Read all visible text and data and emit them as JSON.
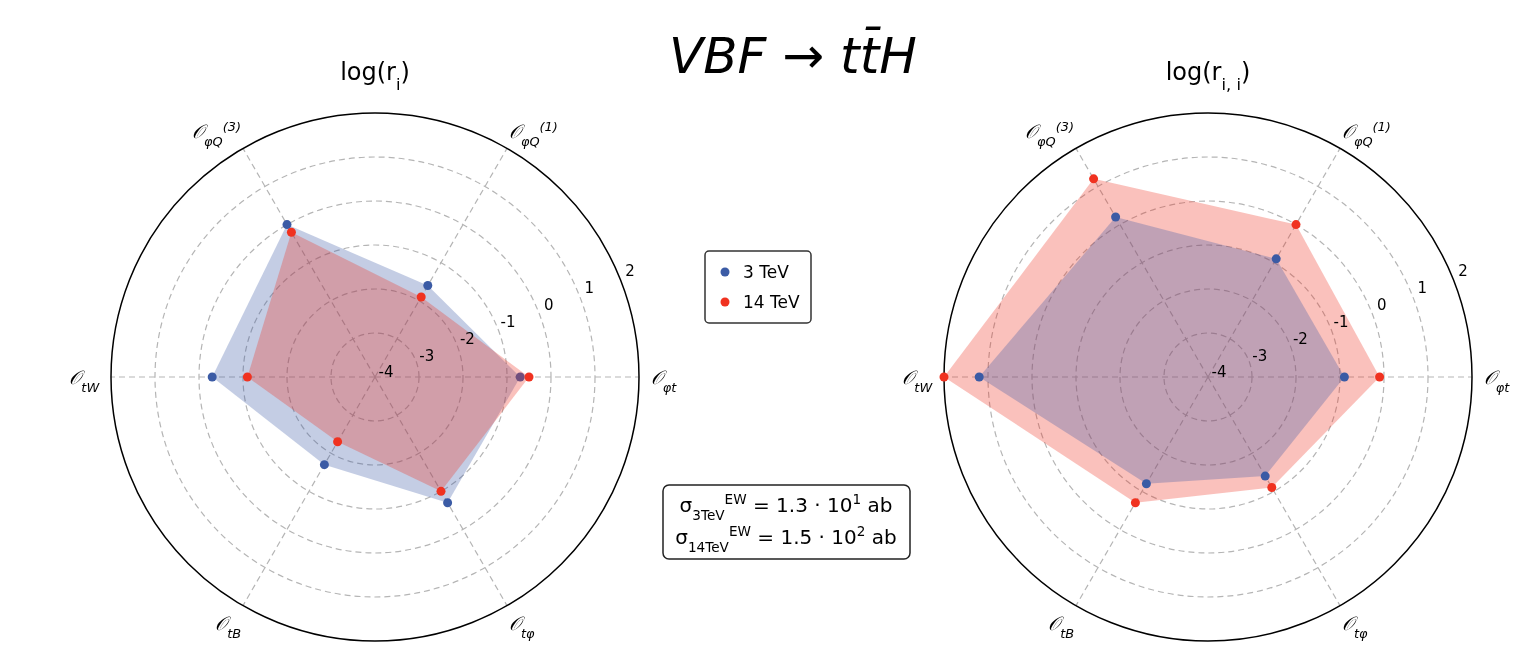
{
  "chart_data": [
    {
      "type": "radar",
      "title": "log(r$_{i}$)",
      "categories": [
        "𝒪$_{φQ}$$^{(1)}$",
        "𝒪$_{φt}$",
        "𝒪$_{tφ}$",
        "𝒪$_{tB}$",
        "𝒪$_{tW}$",
        "𝒪$_{φQ}$$^{(3)}$"
      ],
      "series": [
        {
          "name": "3 TeV",
          "color": "#3b5ba5",
          "values": [
            -1.6,
            -0.7,
            -0.7,
            -1.7,
            -0.3,
            0.0
          ]
        },
        {
          "name": "14 TeV",
          "color": "#f03220",
          "values": [
            -1.9,
            -0.5,
            -1.0,
            -2.3,
            -1.1,
            -0.2
          ]
        }
      ],
      "ylim": [
        -4,
        2
      ],
      "yticks": [
        -4,
        -3,
        -2,
        -1,
        0,
        1,
        2
      ],
      "grid": true,
      "marker": "circle",
      "legend": "right",
      "annotations": [
        "VBF → tt̄H",
        "σ$_{3TeV}$$^{EW}$ = 1.3 · 10$^{1}$ ab",
        "σ$_{14TeV}$$^{EW}$ = 1.5 · 10$^{2}$ ab"
      ]
    },
    {
      "type": "radar",
      "title": "log(r$_{i, i}$)",
      "categories": [
        "𝒪$_{φQ}$$^{(1)}$",
        "𝒪$_{φt}$",
        "𝒪$_{tφ}$",
        "𝒪$_{tB}$",
        "𝒪$_{tW}$",
        "𝒪$_{φQ}$$^{(3)}$"
      ],
      "series": [
        {
          "color": "#f03220",
          "values": [
            0.0,
            -0.1,
            -1.1,
            -0.7,
            2.0,
            1.2
          ]
        },
        {
          "color": "#3b5ba5",
          "values": [
            -0.9,
            -0.9,
            -1.4,
            -1.2,
            1.2,
            0.2
          ]
        }
      ],
      "ylim": [
        -4,
        2
      ],
      "yticks": [
        -4,
        -3,
        -2,
        -1,
        0,
        1,
        2
      ],
      "grid": true,
      "marker": "circle"
    }
  ]
}
